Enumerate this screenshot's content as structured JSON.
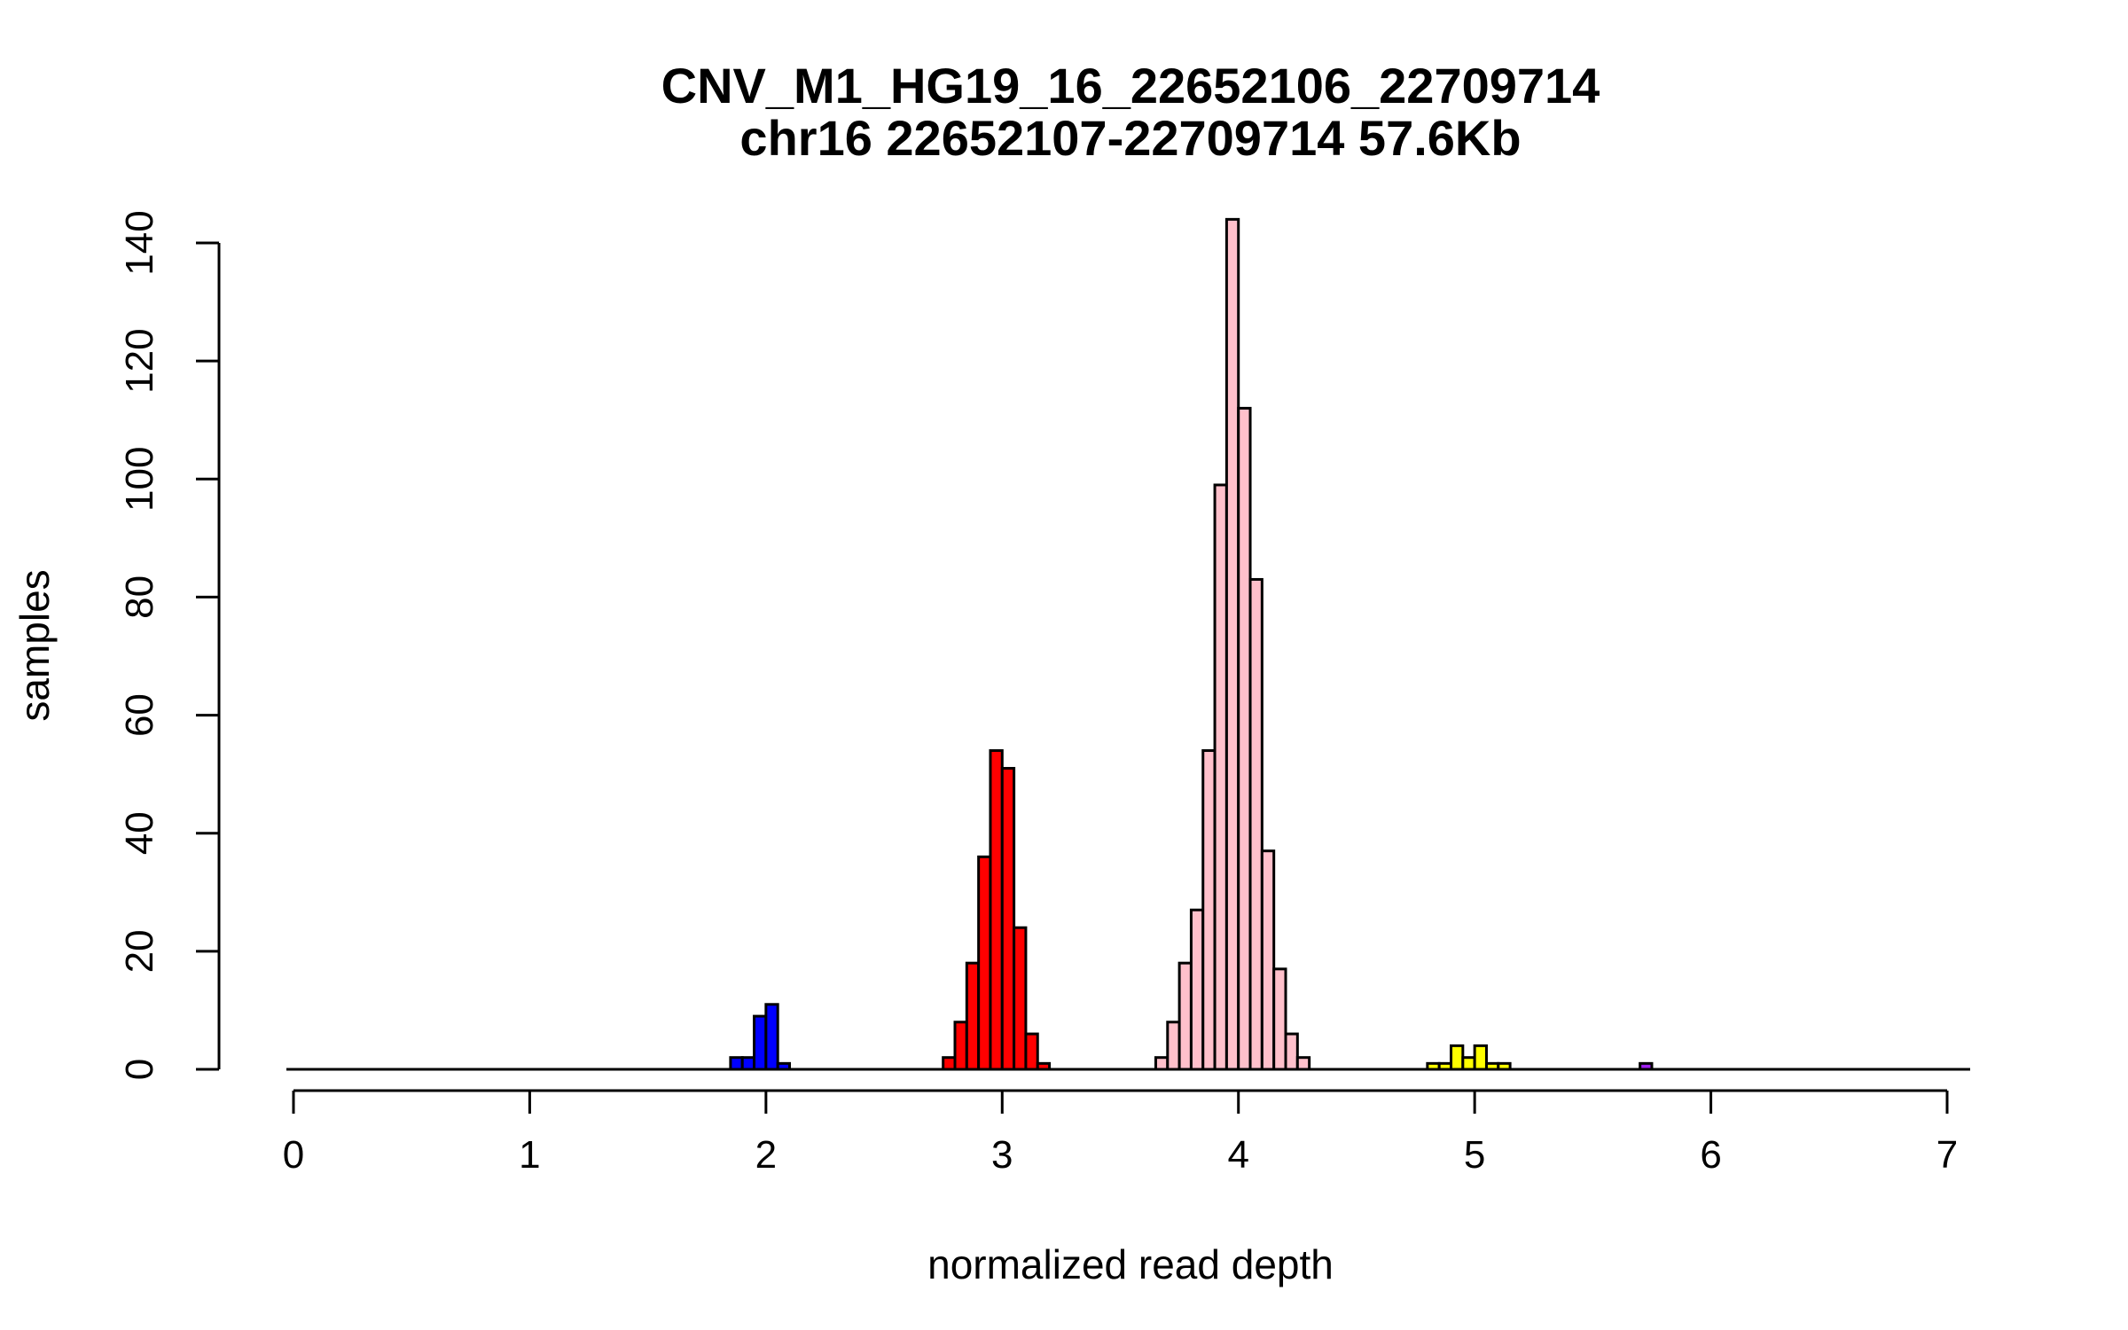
{
  "chart_data": {
    "type": "bar",
    "title": "CNV_M1_HG19_16_22652106_22709714",
    "subtitle": "chr16 22652107-22709714 57.6Kb",
    "xlabel": "normalized read depth",
    "ylabel": "samples",
    "xlim": [
      0,
      7
    ],
    "ylim": [
      0,
      140
    ],
    "x_ticks": [
      "0",
      "1",
      "2",
      "3",
      "4",
      "5",
      "6",
      "7"
    ],
    "y_ticks": [
      "0",
      "20",
      "40",
      "60",
      "80",
      "100",
      "120",
      "140"
    ],
    "bin_width": 0.05,
    "grid": false,
    "legend": "none",
    "series": [
      {
        "color": "#0000ff",
        "bins": [
          {
            "x0": 1.85,
            "value": 2
          },
          {
            "x0": 1.9,
            "value": 2
          },
          {
            "x0": 1.95,
            "value": 9
          },
          {
            "x0": 2.0,
            "value": 11
          },
          {
            "x0": 2.05,
            "value": 1
          }
        ]
      },
      {
        "color": "#ff0000",
        "bins": [
          {
            "x0": 2.75,
            "value": 2
          },
          {
            "x0": 2.8,
            "value": 8
          },
          {
            "x0": 2.85,
            "value": 18
          },
          {
            "x0": 2.9,
            "value": 36
          },
          {
            "x0": 2.95,
            "value": 54
          },
          {
            "x0": 3.0,
            "value": 51
          },
          {
            "x0": 3.05,
            "value": 24
          },
          {
            "x0": 3.1,
            "value": 6
          },
          {
            "x0": 3.15,
            "value": 1
          }
        ]
      },
      {
        "color": "#ffc0cb",
        "bins": [
          {
            "x0": 3.65,
            "value": 2
          },
          {
            "x0": 3.7,
            "value": 8
          },
          {
            "x0": 3.75,
            "value": 18
          },
          {
            "x0": 3.8,
            "value": 27
          },
          {
            "x0": 3.85,
            "value": 54
          },
          {
            "x0": 3.9,
            "value": 99
          },
          {
            "x0": 3.95,
            "value": 144
          },
          {
            "x0": 4.0,
            "value": 112
          },
          {
            "x0": 4.05,
            "value": 83
          },
          {
            "x0": 4.1,
            "value": 37
          },
          {
            "x0": 4.15,
            "value": 17
          },
          {
            "x0": 4.2,
            "value": 6
          },
          {
            "x0": 4.25,
            "value": 2
          }
        ]
      },
      {
        "color": "#ffff00",
        "bins": [
          {
            "x0": 4.8,
            "value": 1
          },
          {
            "x0": 4.85,
            "value": 1
          },
          {
            "x0": 4.9,
            "value": 4
          },
          {
            "x0": 4.95,
            "value": 2
          },
          {
            "x0": 5.0,
            "value": 4
          },
          {
            "x0": 5.05,
            "value": 1
          },
          {
            "x0": 5.1,
            "value": 1
          }
        ]
      },
      {
        "color": "#a020f0",
        "bins": [
          {
            "x0": 5.7,
            "value": 1
          }
        ]
      }
    ]
  }
}
